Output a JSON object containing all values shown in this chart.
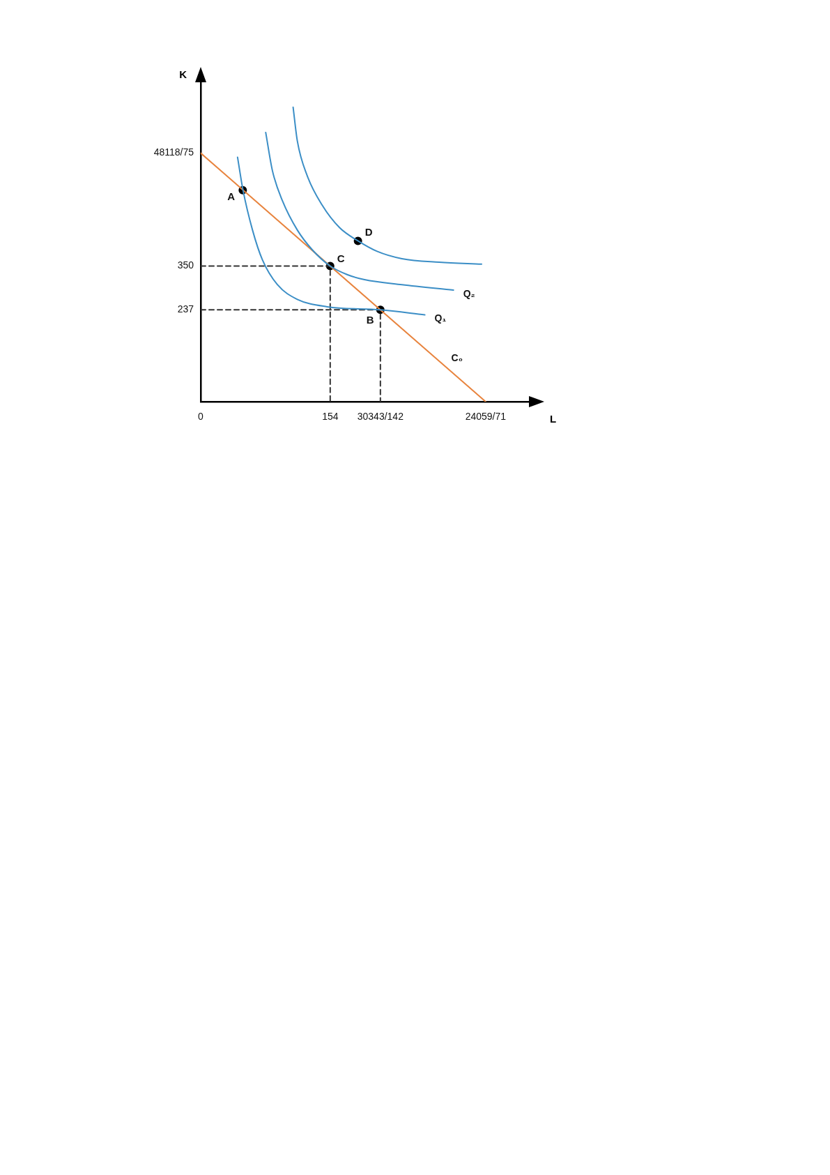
{
  "chart_data": {
    "type": "line",
    "xlabel": "L",
    "ylabel": "K",
    "xlim": [
      0,
      392
    ],
    "ylim": [
      0,
      828
    ],
    "xticks": [
      0,
      154,
      {
        "value": 213.68,
        "label": "30343/142"
      },
      {
        "value": 338.86,
        "label": "24059/71"
      }
    ],
    "yticks": [
      237,
      350,
      {
        "value": 641.57,
        "label": "48118/75"
      }
    ],
    "grid": false,
    "legend": false,
    "marker": "none",
    "series": [
      {
        "name": "Q₁",
        "color": "#3b8ec6",
        "x": [
          43.8,
          50.3,
          61.6,
          73.4,
          91.2,
          114.9,
          150.4,
          213.68,
          266.5
        ],
        "values": [
          631,
          546,
          443,
          366,
          302,
          264,
          245,
          237,
          224
        ]
      },
      {
        "name": "Q₂",
        "color": "#3b8ec6",
        "x": [
          77.3,
          85.3,
          97.1,
          114.9,
          132.7,
          154,
          174.1,
          194.8,
          239.3,
          300.6
        ],
        "values": [
          695,
          596,
          519,
          443,
          392,
          350,
          328,
          315,
          302,
          288
        ]
      },
      {
        "color": "#3b8ec6",
        "x": [
          109.9,
          114.9,
          126.7,
          144.5,
          165.2,
          187,
          209.7,
          239.3,
          283.7,
          334
        ],
        "values": [
          760,
          673,
          583,
          507,
          449,
          415,
          388,
          369,
          360,
          355
        ]
      },
      {
        "name": "C₀",
        "color": "#e8843e",
        "x": [
          0,
          338.86
        ],
        "values": [
          641.57,
          0
        ]
      },
      {
        "color": "#333333",
        "line_style": "dashed",
        "x": [
          0,
          154,
          154
        ],
        "values": [
          350,
          350,
          0
        ]
      },
      {
        "color": "#333333",
        "line_style": "dashed",
        "x": [
          0,
          213.68,
          213.68
        ],
        "values": [
          237,
          237,
          0
        ]
      },
      {
        "type": "scatter",
        "marker": "circle",
        "color": "#000000",
        "x": [
          50,
          154,
          213.68,
          187
        ],
        "values": [
          546,
          350,
          237,
          415
        ]
      }
    ],
    "annotations": [
      {
        "text": "A",
        "x": 50,
        "y": 546
      },
      {
        "text": "C",
        "x": 154,
        "y": 350
      },
      {
        "text": "B",
        "x": 213.68,
        "y": 237
      },
      {
        "text": "D",
        "x": 187,
        "y": 415
      }
    ]
  }
}
